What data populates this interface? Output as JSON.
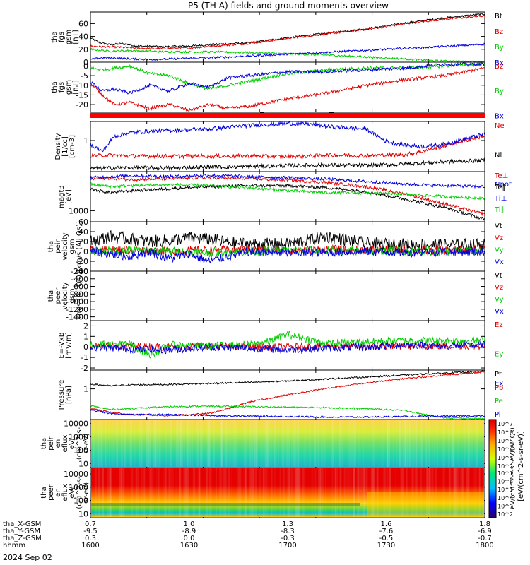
{
  "title": "P5 (TH-A) fields and ground moments overview",
  "colors": {
    "black": "#000000",
    "red": "#e00000",
    "green": "#00cc00",
    "blue": "#0000dd"
  },
  "chart_data": [
    {
      "type": "line",
      "panel": "fgs_gsm_magnitude",
      "ylabel": [
        "tha",
        "fgs",
        "gsm",
        "[nT]"
      ],
      "yticks": [
        "60",
        "40",
        "20",
        "0"
      ],
      "ylim": [
        0,
        78
      ],
      "series": [
        {
          "name": "Bt",
          "color": "#000000",
          "x": [
            0,
            0.02,
            0.05,
            0.08,
            0.12,
            0.18,
            0.25,
            0.33,
            0.4,
            0.5,
            0.6,
            0.7,
            0.8,
            0.9,
            1.0
          ],
          "values": [
            38,
            31,
            27,
            29,
            25,
            24,
            25,
            28,
            30,
            38,
            45,
            52,
            61,
            69,
            75
          ]
        },
        {
          "name": "Bz",
          "color": "#e00000",
          "x": [
            0,
            0.03,
            0.08,
            0.15,
            0.25,
            0.33,
            0.4,
            0.5,
            0.6,
            0.7,
            0.8,
            0.9,
            1.0
          ],
          "values": [
            25,
            24,
            23,
            21,
            22,
            26,
            29,
            37,
            44,
            51,
            60,
            67,
            72
          ]
        },
        {
          "name": "By",
          "color": "#00cc00",
          "x": [
            0,
            0.05,
            0.1,
            0.2,
            0.3,
            0.4,
            0.5,
            0.6,
            0.7,
            0.8,
            0.88,
            0.95,
            1.0
          ],
          "values": [
            20,
            17,
            18,
            16,
            16,
            15,
            13,
            11,
            8,
            5,
            2,
            1,
            0
          ]
        },
        {
          "name": "Bx",
          "color": "#0000dd",
          "x": [
            0,
            0.03,
            0.08,
            0.15,
            0.25,
            0.35,
            0.45,
            0.55,
            0.65,
            0.75,
            0.85,
            0.95,
            1.0
          ],
          "values": [
            4,
            7,
            6,
            4,
            6,
            8,
            11,
            14,
            17,
            20,
            23,
            26,
            28
          ]
        }
      ]
    },
    {
      "type": "line",
      "panel": "fgs_gsm_components",
      "ylabel": [
        "tha",
        "fgs",
        "gsm",
        "[nT]"
      ],
      "yticks": [
        "0",
        "-5",
        "-10",
        "-15",
        "-20"
      ],
      "ylim": [
        -24,
        2
      ],
      "series": [
        {
          "name": "Bz",
          "color": "#e00000",
          "x": [
            0,
            0.03,
            0.06,
            0.1,
            0.15,
            0.2,
            0.25,
            0.3,
            0.35,
            0.4,
            0.5,
            0.6,
            0.7,
            0.8,
            0.9,
            1.0
          ],
          "values": [
            -9,
            -15,
            -20,
            -19,
            -22,
            -20,
            -23,
            -20,
            -22,
            -21,
            -17,
            -14,
            -10,
            -7,
            -5,
            -1
          ]
        },
        {
          "name": "By",
          "color": "#00cc00",
          "x": [
            0,
            0.03,
            0.06,
            0.1,
            0.15,
            0.2,
            0.25,
            0.3,
            0.35,
            0.4,
            0.5,
            0.6,
            0.7,
            0.8,
            0.9,
            1.0
          ],
          "values": [
            -1,
            -2,
            -1,
            0,
            -4,
            -5,
            -9,
            -12,
            -10,
            -8,
            -4,
            -2,
            -1,
            -1,
            0,
            1
          ]
        },
        {
          "name": "Bx",
          "color": "#0000dd",
          "x": [
            0,
            0.03,
            0.06,
            0.1,
            0.15,
            0.2,
            0.25,
            0.3,
            0.35,
            0.4,
            0.5,
            0.6,
            0.7,
            0.8,
            0.9,
            1.0
          ],
          "values": [
            -8,
            -13,
            -12,
            -14,
            -10,
            -13,
            -9,
            -11,
            -6,
            -5,
            -3,
            -3,
            -2,
            -1,
            1,
            1
          ]
        }
      ]
    },
    {
      "type": "line",
      "panel": "density",
      "ylabel": [
        "Density",
        "[1/cc]",
        "[cm-3]"
      ],
      "yticks": [
        "1"
      ],
      "ylim": [
        0,
        1
      ],
      "series": [
        {
          "name": "Ne",
          "color": "#e00000",
          "x": [
            0,
            0.05,
            0.1,
            0.2,
            0.3,
            0.4,
            0.5,
            0.55,
            0.6,
            0.7,
            0.8,
            0.85,
            0.9,
            0.95,
            1.0
          ],
          "values": [
            0.32,
            0.33,
            0.31,
            0.31,
            0.31,
            0.31,
            0.3,
            0.31,
            0.33,
            0.32,
            0.34,
            0.42,
            0.52,
            0.62,
            0.72
          ]
        },
        {
          "name": "Ni",
          "color": "#000000",
          "x": [
            0,
            0.1,
            0.2,
            0.3,
            0.4,
            0.5,
            0.6,
            0.7,
            0.8,
            0.9,
            1.0
          ],
          "values": [
            0.06,
            0.08,
            0.07,
            0.09,
            0.1,
            0.12,
            0.13,
            0.12,
            0.15,
            0.2,
            0.22
          ]
        },
        {
          "name": "Npot",
          "color": "#0000dd",
          "x": [
            0,
            0.03,
            0.06,
            0.1,
            0.2,
            0.3,
            0.4,
            0.5,
            0.55,
            0.6,
            0.7,
            0.75,
            0.8,
            0.85,
            0.9,
            0.95,
            1.0
          ],
          "values": [
            0.55,
            0.4,
            0.7,
            0.78,
            0.82,
            0.85,
            0.92,
            0.96,
            0.95,
            0.9,
            0.85,
            0.6,
            0.52,
            0.5,
            0.55,
            0.65,
            0.75
          ]
        }
      ]
    },
    {
      "type": "line",
      "panel": "temperature",
      "ylabel": [
        "magt3",
        "[eV]"
      ],
      "yticks": [
        "1000"
      ],
      "ylim": [
        0,
        1
      ],
      "series": [
        {
          "name": "Te⊥",
          "color": "#e00000",
          "x": [
            0,
            0.05,
            0.1,
            0.2,
            0.3,
            0.4,
            0.5,
            0.6,
            0.7,
            0.8,
            0.9,
            1.0
          ],
          "values": [
            0.85,
            0.87,
            0.84,
            0.86,
            0.88,
            0.86,
            0.83,
            0.78,
            0.7,
            0.55,
            0.35,
            0.15
          ]
        },
        {
          "name": "Te∥",
          "color": "#000000",
          "x": [
            0,
            0.05,
            0.1,
            0.2,
            0.3,
            0.4,
            0.5,
            0.6,
            0.7,
            0.8,
            0.9,
            1.0
          ],
          "values": [
            0.65,
            0.58,
            0.62,
            0.66,
            0.7,
            0.72,
            0.72,
            0.68,
            0.6,
            0.45,
            0.28,
            0.05
          ]
        },
        {
          "name": "Ti⊥",
          "color": "#0000dd",
          "x": [
            0,
            0.05,
            0.1,
            0.2,
            0.3,
            0.4,
            0.5,
            0.6,
            0.7,
            0.8,
            0.9,
            1.0
          ],
          "values": [
            0.88,
            0.9,
            0.92,
            0.9,
            0.93,
            0.9,
            0.88,
            0.85,
            0.8,
            0.75,
            0.72,
            0.7
          ]
        },
        {
          "name": "Ti∥",
          "color": "#00cc00",
          "x": [
            0,
            0.05,
            0.1,
            0.2,
            0.3,
            0.4,
            0.5,
            0.6,
            0.7,
            0.8,
            0.9,
            1.0
          ],
          "values": [
            0.75,
            0.7,
            0.72,
            0.74,
            0.72,
            0.68,
            0.62,
            0.58,
            0.57,
            0.55,
            0.5,
            0.47
          ]
        }
      ]
    },
    {
      "type": "line",
      "panel": "peir_velocity",
      "ylabel": [
        "tha",
        "peir",
        "velocity",
        "gsm",
        "[km/s (All Qs)]"
      ],
      "yticks": [
        "60",
        "40",
        "20",
        "0",
        "-20",
        "-40"
      ],
      "ylim": [
        -40,
        60
      ],
      "series": [
        {
          "name": "Vt",
          "color": "#000000",
          "x": [
            0,
            0.05,
            0.1,
            0.15,
            0.2,
            0.25,
            0.3,
            0.35,
            0.4,
            0.5,
            0.6,
            0.7,
            0.8,
            0.9,
            1.0
          ],
          "values": [
            20,
            30,
            25,
            20,
            22,
            28,
            25,
            18,
            15,
            15,
            30,
            16,
            14,
            13,
            14
          ]
        },
        {
          "name": "Vz",
          "color": "#e00000",
          "x": [
            0,
            0.1,
            0.2,
            0.3,
            0.4,
            0.5,
            0.6,
            0.7,
            0.8,
            0.9,
            1.0
          ],
          "values": [
            2,
            3,
            0,
            2,
            3,
            2,
            4,
            2,
            3,
            2,
            3
          ]
        },
        {
          "name": "Vy",
          "color": "#00cc00",
          "x": [
            0,
            0.1,
            0.2,
            0.3,
            0.4,
            0.5,
            0.6,
            0.7,
            0.8,
            0.9,
            1.0
          ],
          "values": [
            0,
            2,
            0,
            -2,
            0,
            1,
            2,
            0,
            1,
            0,
            0
          ]
        },
        {
          "name": "Vx",
          "color": "#0000dd",
          "x": [
            0,
            0.05,
            0.1,
            0.15,
            0.2,
            0.25,
            0.3,
            0.4,
            0.5,
            0.6,
            0.7,
            0.8,
            0.9,
            1.0
          ],
          "values": [
            0,
            -5,
            -10,
            0,
            -15,
            -5,
            -20,
            0,
            -3,
            -2,
            0,
            -2,
            0,
            -1
          ]
        }
      ]
    },
    {
      "type": "line",
      "panel": "peer_velocity",
      "ylabel": [
        "tha",
        "peer",
        "velocity",
        "gsm",
        "km/s (All Qs)]"
      ],
      "yticks": [
        "-200",
        "-400",
        "-600",
        "-800",
        "-1000",
        "-1200",
        "-1400"
      ],
      "ylim": [
        -1500,
        -200
      ],
      "series": [
        {
          "name": "Vt",
          "color": "#000000",
          "values": []
        },
        {
          "name": "Vz",
          "color": "#e00000",
          "values": []
        },
        {
          "name": "Vy",
          "color": "#00cc00",
          "values": []
        },
        {
          "name": "Vx",
          "color": "#0000dd",
          "values": []
        }
      ]
    },
    {
      "type": "line",
      "panel": "efield",
      "ylabel": [
        "E=-VxB",
        "[mV/m]"
      ],
      "yticks": [
        "2",
        "1",
        "0",
        "-1",
        "-2"
      ],
      "ylim": [
        -2.2,
        2.5
      ],
      "series": [
        {
          "name": "Ez",
          "color": "#e00000",
          "x": [
            0,
            0.1,
            0.2,
            0.3,
            0.4,
            0.5,
            0.6,
            0.7,
            0.8,
            0.9,
            1.0
          ],
          "values": [
            0.1,
            0.1,
            0,
            0.1,
            0,
            0,
            0.1,
            0,
            0.1,
            0.1,
            0.1
          ]
        },
        {
          "name": "Ey",
          "color": "#00cc00",
          "x": [
            0,
            0.1,
            0.15,
            0.2,
            0.3,
            0.4,
            0.45,
            0.5,
            0.6,
            0.7,
            0.8,
            0.9,
            1.0
          ],
          "values": [
            0.2,
            0.3,
            -0.8,
            0.2,
            0.1,
            0.2,
            0.5,
            1.2,
            0.3,
            0.5,
            0.6,
            0.6,
            0.6
          ]
        },
        {
          "name": "Ex",
          "color": "#0000dd",
          "x": [
            0,
            0.1,
            0.2,
            0.3,
            0.4,
            0.5,
            0.6,
            0.7,
            0.8,
            0.9,
            1.0
          ],
          "values": [
            0,
            -0.2,
            -0.3,
            0,
            -0.1,
            -0.3,
            -0.1,
            0,
            0.2,
            0.1,
            0.2
          ]
        }
      ]
    },
    {
      "type": "line",
      "panel": "pressure",
      "ylabel": [
        "Pressure",
        "[nPa]"
      ],
      "yticks": [
        "1"
      ],
      "ylim": [
        0,
        1
      ],
      "series": [
        {
          "name": "Pt",
          "color": "#000000",
          "x": [
            0,
            0.05,
            0.1,
            0.2,
            0.3,
            0.4,
            0.5,
            0.6,
            0.7,
            0.8,
            0.9,
            1.0
          ],
          "values": [
            0.72,
            0.68,
            0.7,
            0.71,
            0.73,
            0.75,
            0.78,
            0.82,
            0.86,
            0.9,
            0.94,
            0.98
          ]
        },
        {
          "name": "Pb",
          "color": "#e00000",
          "x": [
            0,
            0.05,
            0.1,
            0.2,
            0.3,
            0.35,
            0.4,
            0.5,
            0.6,
            0.7,
            0.8,
            0.9,
            1.0
          ],
          "values": [
            0.22,
            0.15,
            0.1,
            0.08,
            0.12,
            0.22,
            0.35,
            0.5,
            0.63,
            0.74,
            0.83,
            0.9,
            0.96
          ]
        },
        {
          "name": "Pe",
          "color": "#00cc00",
          "x": [
            0,
            0.05,
            0.1,
            0.2,
            0.3,
            0.4,
            0.5,
            0.6,
            0.7,
            0.8,
            0.85,
            0.9,
            1.0
          ],
          "values": [
            0.28,
            0.2,
            0.22,
            0.26,
            0.27,
            0.26,
            0.25,
            0.24,
            0.22,
            0.18,
            0.1,
            0.03,
            0.02
          ]
        },
        {
          "name": "Pi",
          "color": "#0000dd",
          "x": [
            0,
            0.05,
            0.1,
            0.2,
            0.3,
            0.4,
            0.5,
            0.6,
            0.7,
            0.8,
            0.9,
            1.0
          ],
          "values": [
            0.2,
            0.12,
            0.1,
            0.1,
            0.08,
            0.07,
            0.06,
            0.05,
            0.05,
            0.06,
            0.07,
            0.07
          ]
        }
      ]
    },
    {
      "type": "heatmap",
      "panel": "peir_en_eflux",
      "ylabel": [
        "tha",
        "peir",
        "en",
        "eflux",
        "eV/",
        "(cm^2-s-",
        "sr-eV)"
      ],
      "yticks": [
        "10000",
        "1000",
        "100",
        "10"
      ],
      "ylim": [
        5,
        20000
      ],
      "log_y": true
    },
    {
      "type": "heatmap",
      "panel": "peer_en_eflux",
      "ylabel": [
        "tha",
        "peer",
        "en",
        "eflux",
        "eV/",
        "(cm^2-s-",
        "sr-eV)"
      ],
      "yticks": [
        "10000",
        "1000",
        "100",
        "10"
      ],
      "ylim": [
        5,
        30000
      ],
      "log_y": true
    }
  ],
  "colorbar": {
    "ticks": [
      "10^7",
      "10^6",
      "10^5",
      "10^4",
      "10^3",
      "10^2"
    ],
    "ticks2": [
      "10^7",
      "10^6",
      "10^5",
      "10^4",
      "10^3",
      "10^2"
    ],
    "label": "[eV/(cm^2-s-sr-eV)]",
    "inner_label": "eV/(cm^2-s-sr-eV)(All Qs)"
  },
  "xaxis": {
    "rows": [
      {
        "label": "tha_X-GSM",
        "values": [
          "0.7",
          "1.0",
          "1.3",
          "1.6",
          "1.8"
        ]
      },
      {
        "label": "tha_Y-GSM",
        "values": [
          "-9.5",
          "-8.9",
          "-8.3",
          "-7.6",
          "-6.9"
        ]
      },
      {
        "label": "tha_Z-GSM",
        "values": [
          "0.3",
          "0.0",
          "-0.3",
          "-0.5",
          "-0.7"
        ]
      },
      {
        "label": "hhmm",
        "values": [
          "1600",
          "1630",
          "1700",
          "1730",
          "1800"
        ]
      }
    ],
    "date": "2024 Sep 02"
  }
}
